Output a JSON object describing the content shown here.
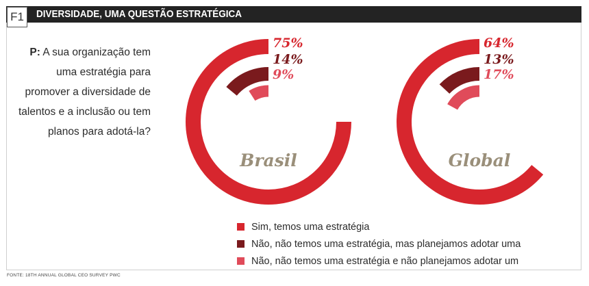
{
  "figure": {
    "badge": "F1",
    "title": "DIVERSIDADE, UMA QUESTÃO ESTRATÉGICA"
  },
  "question": {
    "lead": "P:",
    "text": "A sua organização tem uma estratégia para promover a diversidade de talentos e a inclusão ou tem planos para adotá-la?"
  },
  "source": "FONTE: 18TH ANNUAL GLOBAL CEO SURVEY PWC",
  "colors": {
    "sim": "#d7262e",
    "planejamos": "#7a1a1d",
    "nao": "#e04b5a",
    "header": "#232323"
  },
  "chart_data": {
    "type": "radial-bar",
    "categories": [
      "Sim, temos uma estratégia",
      "Não, não temos uma estratégia, mas planejamos adotar uma",
      "Não, não temos uma estratégia e não planejamos adotar um"
    ],
    "series": [
      {
        "name": "Brasil",
        "values": [
          75,
          14,
          9
        ],
        "labels": [
          "75%",
          "14%",
          "9%"
        ]
      },
      {
        "name": "Global",
        "values": [
          64,
          13,
          17
        ],
        "labels": [
          "64%",
          "13%",
          "17%"
        ]
      }
    ],
    "unit": "%",
    "legend_position": "bottom"
  }
}
